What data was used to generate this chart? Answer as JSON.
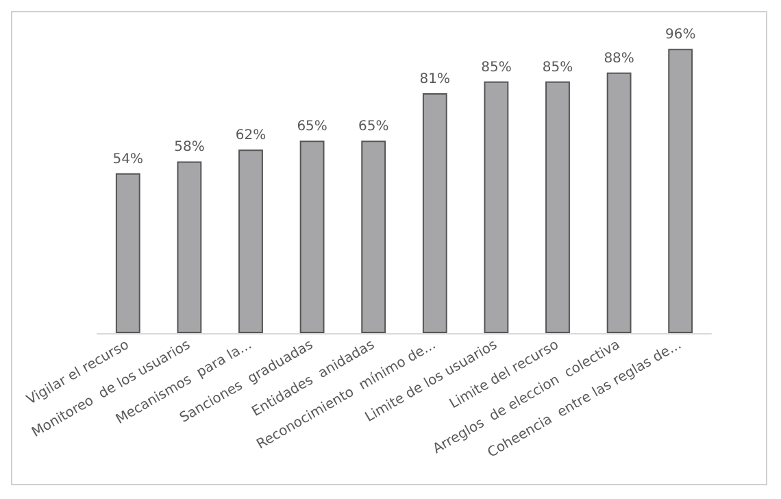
{
  "chart_data": {
    "type": "bar",
    "categories": [
      "Vigilar el recurso",
      "Monitoreo  de los usuarios",
      "Mecanismos  para la...",
      "Sanciones  graduadas",
      "Entidades  anidadas",
      "Reconocimiento  mínimo de...",
      "Limite de los usuarios",
      "Limite del recurso",
      "Arreglos  de eleccion  colectiva",
      "Coheencia  entre las reglas de..."
    ],
    "values": [
      54,
      58,
      62,
      65,
      65,
      81,
      85,
      85,
      88,
      96
    ],
    "value_labels": [
      "54%",
      "58%",
      "62%",
      "65%",
      "65%",
      "81%",
      "85%",
      "85%",
      "88%",
      "96%"
    ],
    "color": "#a6a6a8"
  }
}
